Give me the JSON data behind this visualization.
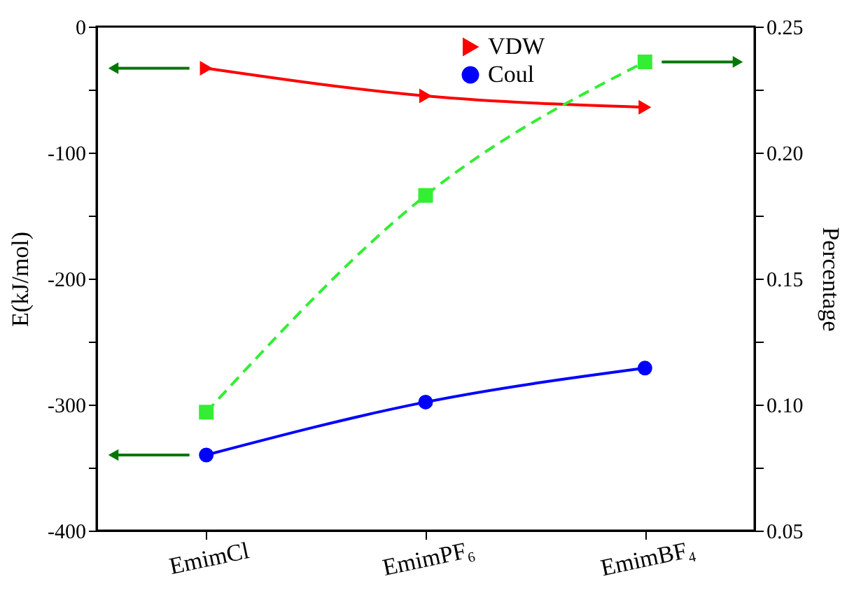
{
  "chart_data": {
    "type": "line",
    "categories": [
      "EmimCl",
      "EmimPF₆",
      "EmimBF₄"
    ],
    "ylabel": "E(kJ/mol)",
    "y2label": "Percentage",
    "ylim": [
      -400,
      0
    ],
    "yticks": [
      -400,
      {
        "value": -350,
        "label": null
      },
      -300,
      {
        "value": -250,
        "label": null
      },
      -200,
      {
        "value": -150,
        "label": null
      },
      -100,
      {
        "value": -50,
        "label": null
      },
      0
    ],
    "y2lim": [
      0.05,
      0.25
    ],
    "y2ticks": [
      0.05,
      {
        "value": 0.075,
        "label": null
      },
      "0.10",
      {
        "value": 0.125,
        "label": null
      },
      0.15,
      {
        "value": 0.175,
        "label": null
      },
      "0.20",
      {
        "value": 0.225,
        "label": null
      },
      0.25
    ],
    "series": [
      {
        "name": "VDW",
        "color": "#ff0000",
        "values": [
          -33,
          -55,
          -64
        ],
        "marker": "triangle",
        "line_style": "solid"
      },
      {
        "name": "Coul",
        "color": "#0000ff",
        "values": [
          -340,
          -298,
          -271
        ],
        "marker": "circle",
        "line_style": "solid"
      },
      {
        "color": "#33ee33",
        "values": [
          0.097,
          0.183,
          0.236
        ],
        "marker": "square",
        "line_style": "dashed",
        "axis": "y2"
      }
    ],
    "grid": false,
    "legend": "top right"
  }
}
